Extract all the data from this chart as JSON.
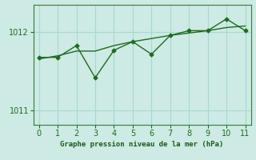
{
  "x": [
    0,
    1,
    2,
    3,
    4,
    5,
    6,
    7,
    8,
    9,
    10,
    11
  ],
  "y_jagged": [
    1011.68,
    1011.68,
    1011.83,
    1011.42,
    1011.77,
    1011.88,
    1011.72,
    1011.96,
    1012.02,
    1012.02,
    1012.17,
    1012.02
  ],
  "y_smooth": [
    1011.66,
    1011.7,
    1011.76,
    1011.76,
    1011.83,
    1011.88,
    1011.92,
    1011.96,
    1011.99,
    1012.02,
    1012.06,
    1012.08
  ],
  "line_color": "#1f6b1f",
  "bg_color": "#cdeae4",
  "grid_color": "#a8d8d0",
  "xlabel": "Graphe pression niveau de la mer (hPa)",
  "xlim": [
    -0.3,
    11.3
  ],
  "ylim": [
    1010.82,
    1012.35
  ],
  "yticks": [
    1011,
    1012
  ],
  "xticks": [
    0,
    1,
    2,
    3,
    4,
    5,
    6,
    7,
    8,
    9,
    10,
    11
  ]
}
